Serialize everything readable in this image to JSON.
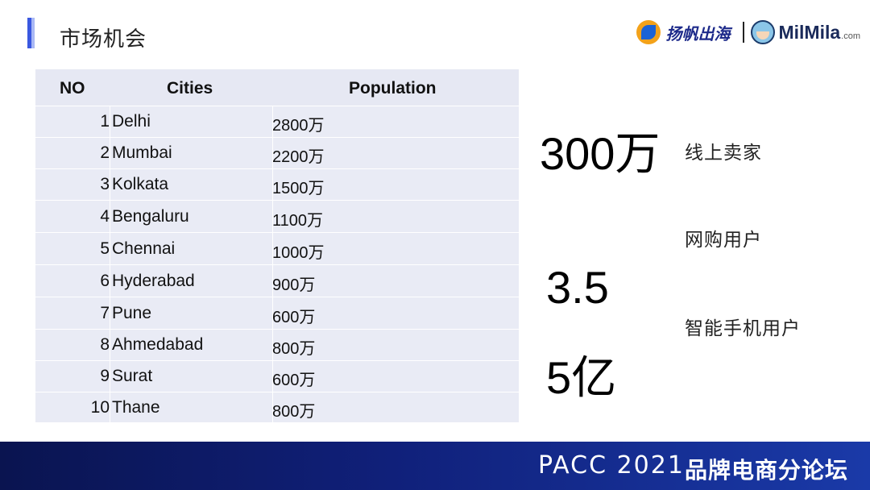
{
  "header": {
    "title": "市场机会",
    "logo_yangfan": "扬帆出海",
    "logo_milmila": "MilMila",
    "logo_milmila_suffix": ".com"
  },
  "table": {
    "headers": [
      "NO",
      "Cities",
      "Population"
    ],
    "rows": [
      {
        "no": "1",
        "city": "Delhi",
        "population": "2800万"
      },
      {
        "no": "2",
        "city": "Mumbai",
        "population": "2200万"
      },
      {
        "no": "3",
        "city": "Kolkata",
        "population": "1500万"
      },
      {
        "no": "4",
        "city": "Bengaluru",
        "population": "1100万"
      },
      {
        "no": "5",
        "city": "Chennai",
        "population": "1000万"
      },
      {
        "no": "6",
        "city": "Hyderabad",
        "population": "900万"
      },
      {
        "no": "7",
        "city": "Pune",
        "population": "600万"
      },
      {
        "no": "8",
        "city": "Ahmedabad",
        "population": "800万"
      },
      {
        "no": "9",
        "city": "Surat",
        "population": "600万"
      },
      {
        "no": "10",
        "city": "Thane",
        "population": "800万"
      }
    ]
  },
  "stats": {
    "sellers_value": "300万",
    "sellers_label": "线上卖家",
    "online_label": "网购用户",
    "online_value": "3.5",
    "smartphone_value": "5亿",
    "smartphone_label": "智能手机用户"
  },
  "footer": {
    "brand": "PACC 2021",
    "forum": "品牌电商分论坛"
  },
  "colors": {
    "accent": "#3a58e0",
    "table_bg": "#e9ebf5",
    "footer_dark": "#0a1450",
    "footer_light": "#1a3aa8"
  }
}
